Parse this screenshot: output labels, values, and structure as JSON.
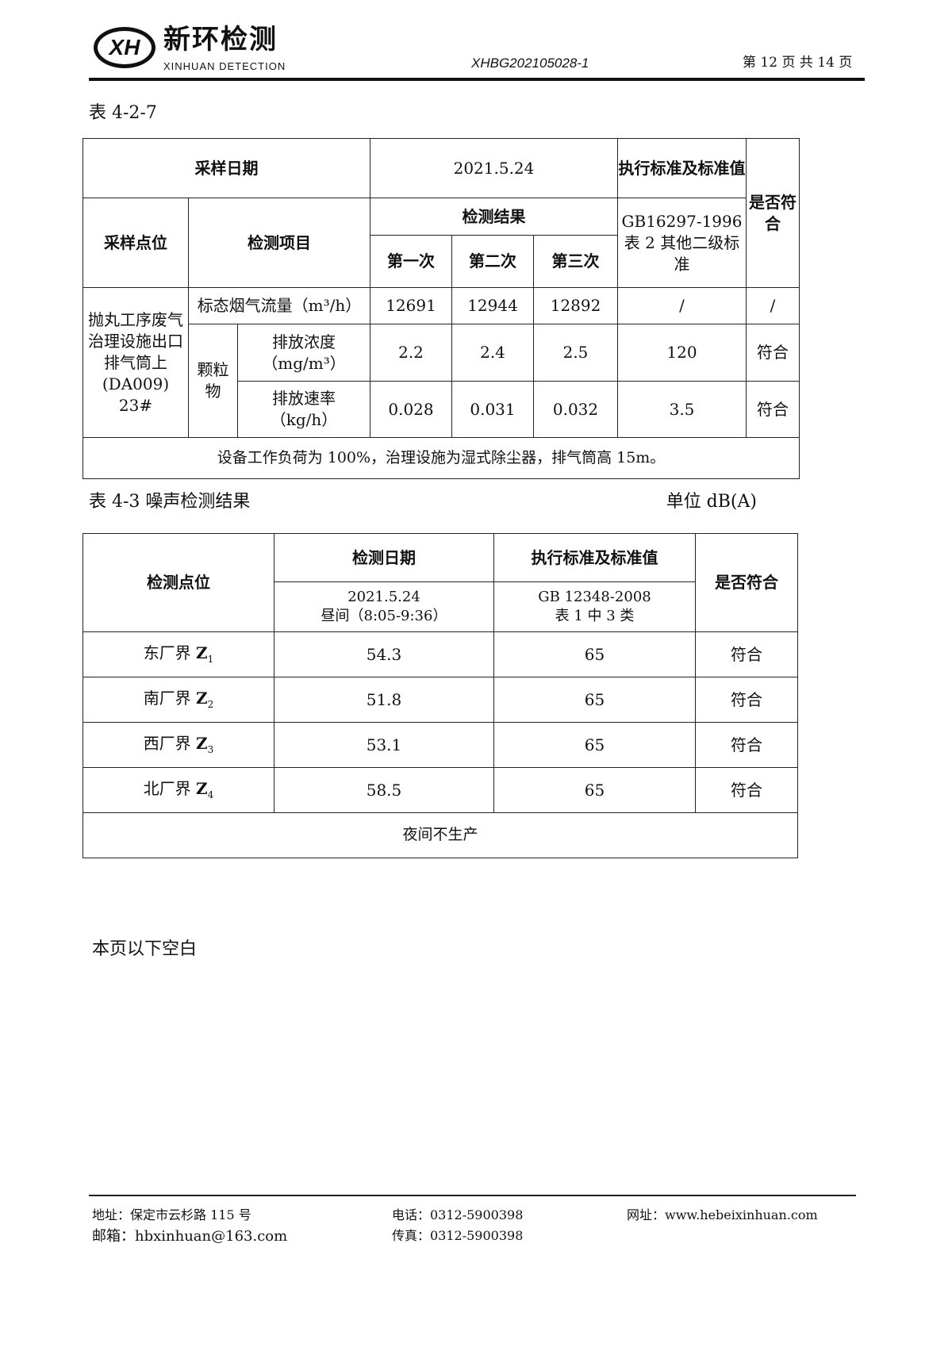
{
  "header": {
    "logo_mark": "XH",
    "logo_cn": "新环检测",
    "logo_en": "XINHUAN DETECTION",
    "doc_no": "XHBG202105028-1",
    "page": "第 12 页 共 14 页"
  },
  "table1": {
    "caption": "表 4-2-7",
    "sampling_date_label": "采样日期",
    "sampling_date": "2021.5.24",
    "standard_label": "执行标准及标准值",
    "compliance_label": "是否符合",
    "site_label": "采样点位",
    "item_label": "检测项目",
    "results_label": "检测结果",
    "standard_name": "GB16297-1996 表 2 其他二级标准",
    "runs": [
      "第一次",
      "第二次",
      "第三次"
    ],
    "site": "抛丸工序废气治理设施出口排气筒上(DA009) 23#",
    "particulate": "颗粒物",
    "rows": [
      {
        "item": "标态烟气流量（m³/h）",
        "v": [
          "12691",
          "12944",
          "12892"
        ],
        "std": "/",
        "ok": "/"
      },
      {
        "item": "排放浓度（mg/m³）",
        "v": [
          "2.2",
          "2.4",
          "2.5"
        ],
        "std": "120",
        "ok": "符合"
      },
      {
        "item": "排放速率（kg/h）",
        "v": [
          "0.028",
          "0.031",
          "0.032"
        ],
        "std": "3.5",
        "ok": "符合"
      }
    ],
    "note": "设备工作负荷为 100%，治理设施为湿式除尘器，排气筒高 15m。"
  },
  "table2": {
    "caption": "表 4-3 噪声检测结果",
    "unit": "单位 dB(A)",
    "point_label": "检测点位",
    "date_label": "检测日期",
    "standard_label": "执行标准及标准值",
    "compliance_label": "是否符合",
    "date_value": "2021.5.24",
    "date_period": "昼间（8:05-9:36）",
    "standard_name": "GB 12348-2008",
    "standard_class": "表 1 中 3 类",
    "rows": [
      {
        "point": "东厂界",
        "z": "Z",
        "sub": "1",
        "value": "54.3",
        "std": "65",
        "ok": "符合"
      },
      {
        "point": "南厂界",
        "z": "Z",
        "sub": "2",
        "value": "51.8",
        "std": "65",
        "ok": "符合"
      },
      {
        "point": "西厂界",
        "z": "Z",
        "sub": "3",
        "value": "53.1",
        "std": "65",
        "ok": "符合"
      },
      {
        "point": "北厂界",
        "z": "Z",
        "sub": "4",
        "value": "58.5",
        "std": "65",
        "ok": "符合"
      }
    ],
    "note": "夜间不生产"
  },
  "blank_note": "本页以下空白",
  "footer": {
    "address": "地址：保定市云杉路 115 号",
    "email": "邮箱：hbxinhuan@163.com",
    "phone": "电话：0312-5900398",
    "fax": "传真：0312-5900398",
    "website": "网址：www.hebeixinhuan.com"
  }
}
